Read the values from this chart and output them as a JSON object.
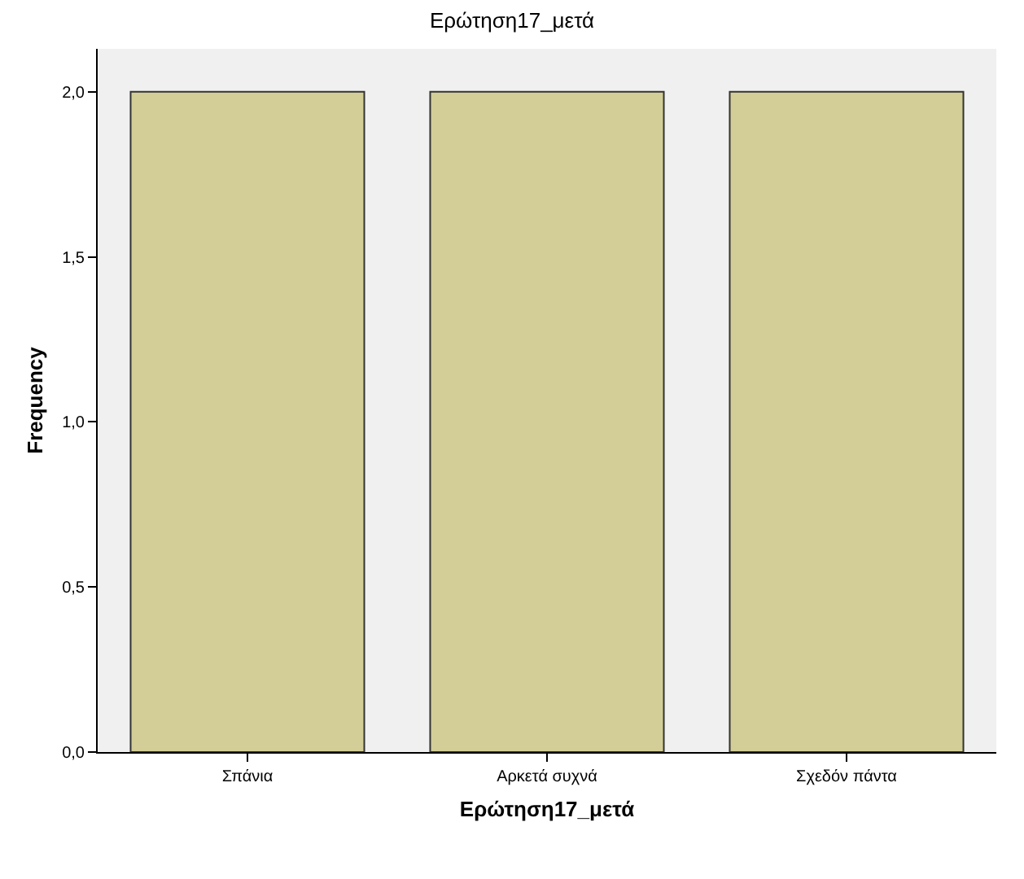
{
  "chart_data": {
    "type": "bar",
    "title": "Ερώτηση17_μετά",
    "xlabel": "Ερώτηση17_μετά",
    "ylabel": "Frequency",
    "categories": [
      "Σπάνια",
      "Αρκετά συχνά",
      "Σχεδόν πάντα"
    ],
    "values": [
      2,
      2,
      2
    ],
    "color": "#d3ce97",
    "ylim": [
      0,
      2.13
    ],
    "yticks": [
      {
        "value": 0,
        "label": "0,0"
      },
      {
        "value": 0.5,
        "label": "0,5"
      },
      {
        "value": 1,
        "label": "1,0"
      },
      {
        "value": 1.5,
        "label": "1,5"
      },
      {
        "value": 2,
        "label": "2,0"
      }
    ],
    "grid": false
  }
}
